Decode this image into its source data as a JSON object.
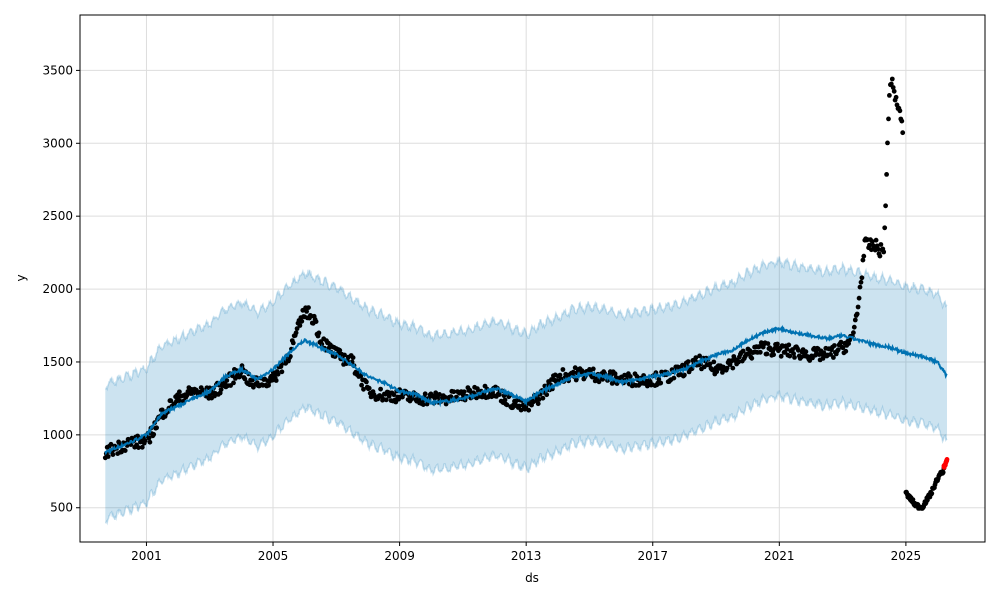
{
  "chart_data": {
    "type": "line",
    "title": "",
    "xlabel": "ds",
    "ylabel": "y",
    "xlim": [
      1998.9,
      2027.5
    ],
    "ylim": [
      265,
      3880
    ],
    "grid": true,
    "x_ticks": [
      2001,
      2005,
      2009,
      2013,
      2017,
      2021,
      2025
    ],
    "x_tick_labels": [
      "2001",
      "2005",
      "2009",
      "2013",
      "2017",
      "2021",
      "2025"
    ],
    "y_ticks": [
      500,
      1000,
      1500,
      2000,
      2500,
      3000,
      3500
    ],
    "y_tick_labels": [
      "500",
      "1000",
      "1500",
      "2000",
      "2500",
      "3000",
      "3500"
    ],
    "colors": {
      "forecast": "#0072B2",
      "band": "#0072B2",
      "actual": "#000000",
      "recent": "#ff0000",
      "grid": "#dddddd"
    },
    "series": [
      {
        "name": "yhat",
        "points": [
          [
            1999.7,
            880
          ],
          [
            2000.5,
            950
          ],
          [
            2001,
            1000
          ],
          [
            2001.5,
            1150
          ],
          [
            2002,
            1200
          ],
          [
            2002.5,
            1250
          ],
          [
            2003,
            1300
          ],
          [
            2003.5,
            1400
          ],
          [
            2004,
            1450
          ],
          [
            2004.5,
            1380
          ],
          [
            2005,
            1450
          ],
          [
            2005.5,
            1560
          ],
          [
            2006,
            1650
          ],
          [
            2006.5,
            1600
          ],
          [
            2007,
            1550
          ],
          [
            2007.5,
            1480
          ],
          [
            2008,
            1400
          ],
          [
            2008.5,
            1360
          ],
          [
            2009,
            1300
          ],
          [
            2009.5,
            1280
          ],
          [
            2010,
            1220
          ],
          [
            2010.5,
            1230
          ],
          [
            2011,
            1250
          ],
          [
            2011.5,
            1280
          ],
          [
            2012,
            1320
          ],
          [
            2012.5,
            1280
          ],
          [
            2013,
            1230
          ],
          [
            2013.5,
            1300
          ],
          [
            2014,
            1350
          ],
          [
            2014.5,
            1400
          ],
          [
            2015,
            1420
          ],
          [
            2015.5,
            1400
          ],
          [
            2016,
            1360
          ],
          [
            2016.5,
            1380
          ],
          [
            2017,
            1400
          ],
          [
            2017.5,
            1420
          ],
          [
            2018,
            1450
          ],
          [
            2018.5,
            1500
          ],
          [
            2019,
            1550
          ],
          [
            2019.5,
            1580
          ],
          [
            2020,
            1650
          ],
          [
            2020.5,
            1700
          ],
          [
            2021,
            1730
          ],
          [
            2021.5,
            1700
          ],
          [
            2022,
            1680
          ],
          [
            2022.5,
            1660
          ],
          [
            2023,
            1680
          ],
          [
            2023.5,
            1650
          ],
          [
            2024,
            1620
          ],
          [
            2024.5,
            1600
          ],
          [
            2025,
            1560
          ],
          [
            2025.5,
            1540
          ],
          [
            2026,
            1500
          ],
          [
            2026.3,
            1400
          ]
        ]
      },
      {
        "name": "uncertainty_half_width",
        "value": 460
      },
      {
        "name": "actual",
        "points": [
          [
            1999.7,
            880
          ],
          [
            2000.5,
            950
          ],
          [
            2001,
            950
          ],
          [
            2001.5,
            1150
          ],
          [
            2002,
            1250
          ],
          [
            2002.5,
            1300
          ],
          [
            2003,
            1280
          ],
          [
            2003.5,
            1350
          ],
          [
            2004,
            1450
          ],
          [
            2004.3,
            1350
          ],
          [
            2005,
            1380
          ],
          [
            2005.5,
            1550
          ],
          [
            2006,
            1850
          ],
          [
            2006.3,
            1800
          ],
          [
            2006.5,
            1650
          ],
          [
            2007,
            1550
          ],
          [
            2007.5,
            1500
          ],
          [
            2008,
            1300
          ],
          [
            2008.5,
            1270
          ],
          [
            2009,
            1270
          ],
          [
            2009.5,
            1250
          ],
          [
            2010,
            1250
          ],
          [
            2010.5,
            1250
          ],
          [
            2011,
            1270
          ],
          [
            2011.5,
            1300
          ],
          [
            2012,
            1300
          ],
          [
            2012.5,
            1230
          ],
          [
            2013,
            1180
          ],
          [
            2013.5,
            1280
          ],
          [
            2014,
            1400
          ],
          [
            2014.5,
            1420
          ],
          [
            2015,
            1420
          ],
          [
            2015.5,
            1400
          ],
          [
            2016,
            1380
          ],
          [
            2016.5,
            1380
          ],
          [
            2017,
            1380
          ],
          [
            2017.5,
            1400
          ],
          [
            2018,
            1450
          ],
          [
            2018.5,
            1500
          ],
          [
            2019,
            1450
          ],
          [
            2019.5,
            1500
          ],
          [
            2020,
            1550
          ],
          [
            2020.5,
            1600
          ],
          [
            2021,
            1580
          ],
          [
            2021.5,
            1570
          ],
          [
            2022,
            1550
          ],
          [
            2022.5,
            1550
          ],
          [
            2023,
            1600
          ],
          [
            2023.3,
            1650
          ],
          [
            2023.5,
            1900
          ],
          [
            2023.7,
            2300
          ],
          [
            2024,
            2300
          ],
          [
            2024.3,
            2250
          ],
          [
            2024.5,
            3450
          ],
          [
            2024.7,
            3300
          ],
          [
            2024.9,
            3100
          ]
        ]
      },
      {
        "name": "actual_recent",
        "points": [
          [
            2025,
            600
          ],
          [
            2025.3,
            520
          ],
          [
            2025.5,
            500
          ],
          [
            2025.8,
            600
          ],
          [
            2026,
            700
          ],
          [
            2026.2,
            760
          ]
        ]
      },
      {
        "name": "latest_highlight",
        "points": [
          [
            2026.2,
            780
          ],
          [
            2026.25,
            800
          ],
          [
            2026.3,
            830
          ]
        ]
      }
    ]
  }
}
